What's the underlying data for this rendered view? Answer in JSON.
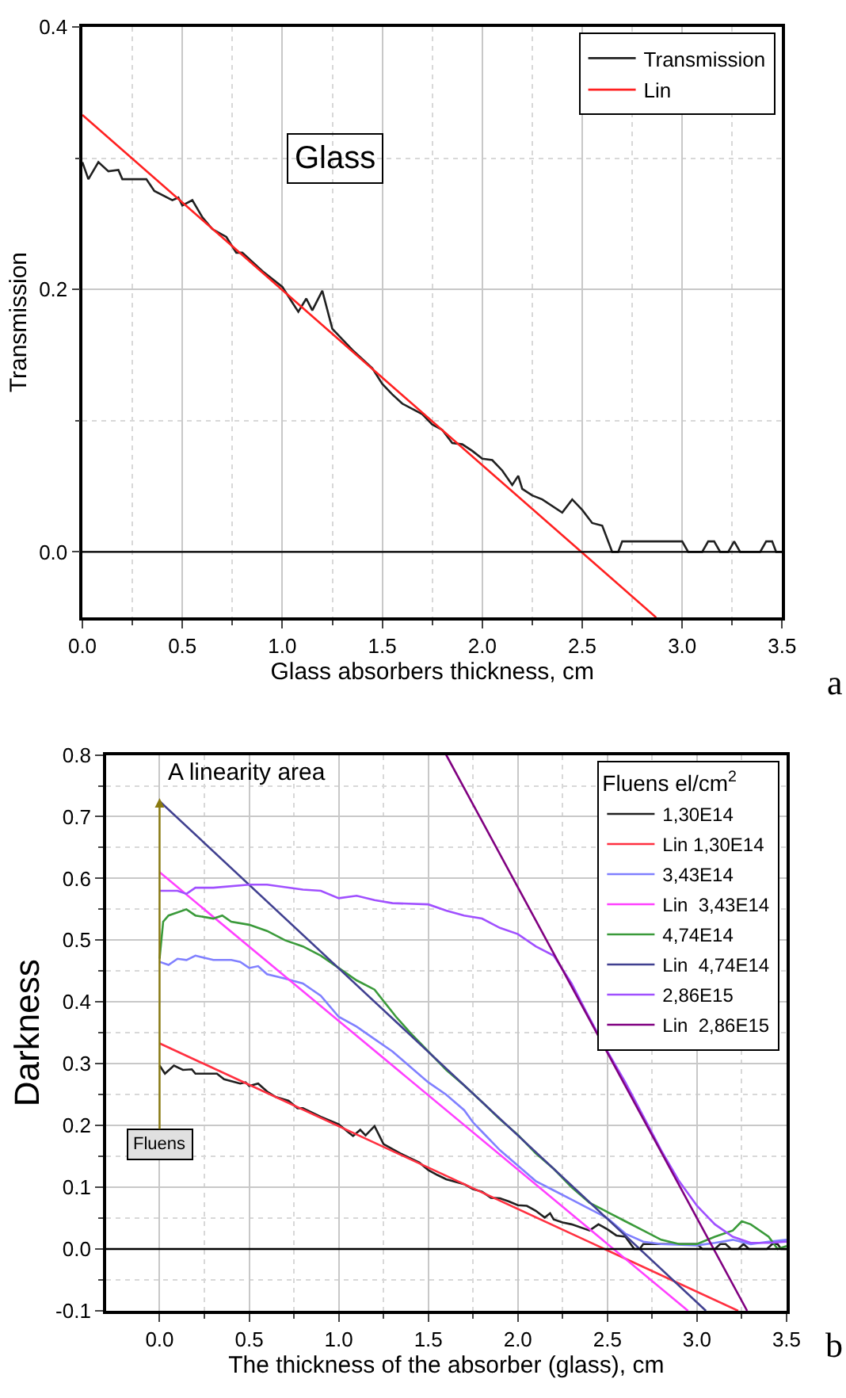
{
  "chart_data": [
    {
      "type": "line",
      "xlabel": "Glass absorbers thickness, cm",
      "ylabel": "Transmission",
      "xlim": [
        0,
        3.5
      ],
      "ylim": [
        -0.05,
        0.4
      ],
      "xticks": [
        {
          "value": 0,
          "label": "0.0"
        },
        0.5,
        {
          "value": 1,
          "label": "1.0"
        },
        1.5,
        {
          "value": 2,
          "label": "2.0"
        },
        2.5,
        {
          "value": 3,
          "label": "3.0"
        },
        3.5
      ],
      "yticks": [
        {
          "value": 0,
          "label": "0.0"
        },
        0.2,
        0.4
      ],
      "grid": true,
      "legend": "top right",
      "ref_lines": [
        {
          "axis": "y",
          "value": 0,
          "color": "#000000"
        }
      ],
      "annotations": [
        "Glass",
        "a"
      ],
      "series": [
        {
          "name": "Transmission",
          "color": "#202020",
          "x": [
            0,
            0.03,
            0.08,
            0.13,
            0.18,
            0.2,
            0.32,
            0.36,
            0.45,
            0.48,
            0.5,
            0.55,
            0.6,
            0.65,
            0.72,
            0.77,
            0.8,
            0.9,
            1.0,
            1.05,
            1.08,
            1.12,
            1.15,
            1.2,
            1.25,
            1.35,
            1.45,
            1.5,
            1.55,
            1.6,
            1.7,
            1.75,
            1.8,
            1.85,
            1.9,
            1.95,
            2.0,
            2.05,
            2.1,
            2.15,
            2.18,
            2.2,
            2.25,
            2.3,
            2.4,
            2.45,
            2.5,
            2.55,
            2.6,
            2.65,
            2.68,
            2.7,
            3.0,
            3.03,
            3.1,
            3.13,
            3.16,
            3.19,
            3.23,
            3.26,
            3.29,
            3.39,
            3.42,
            3.45,
            3.47,
            3.5
          ],
          "values": [
            0.297,
            0.284,
            0.297,
            0.29,
            0.291,
            0.284,
            0.284,
            0.275,
            0.268,
            0.27,
            0.264,
            0.268,
            0.255,
            0.246,
            0.24,
            0.228,
            0.228,
            0.214,
            0.202,
            0.19,
            0.183,
            0.193,
            0.184,
            0.199,
            0.17,
            0.154,
            0.14,
            0.128,
            0.12,
            0.113,
            0.105,
            0.097,
            0.093,
            0.083,
            0.082,
            0.077,
            0.071,
            0.07,
            0.062,
            0.051,
            0.058,
            0.048,
            0.043,
            0.04,
            0.03,
            0.04,
            0.032,
            0.022,
            0.02,
            0.0,
            0.0,
            0.008,
            0.008,
            0.0,
            0.0,
            0.008,
            0.008,
            0.0,
            0.0,
            0.008,
            0.0,
            0.0,
            0.008,
            0.008,
            0.0,
            0.0
          ]
        },
        {
          "name": "Lin",
          "color": "#ff2020",
          "x": [
            0,
            2.87
          ],
          "values": [
            0.333,
            -0.05
          ]
        }
      ]
    },
    {
      "type": "line",
      "xlabel": "The thickness of the absorber (glass), cm",
      "ylabel": "Darkness",
      "legend_title": "Fluens el/cm$^{2}$",
      "xlim": [
        -0.3,
        3.5
      ],
      "ylim": [
        -0.1,
        0.8
      ],
      "xticks": [
        {
          "value": 0,
          "label": "0.0"
        },
        0.5,
        {
          "value": 1,
          "label": "1.0"
        },
        1.5,
        {
          "value": 2,
          "label": "2.0"
        },
        2.5,
        {
          "value": 3,
          "label": "3.0"
        },
        3.5
      ],
      "yticks": [
        -0.1,
        {
          "value": 0,
          "label": "0.0"
        },
        0.1,
        0.2,
        0.3,
        0.4,
        0.5,
        0.6,
        0.7,
        0.8
      ],
      "grid": true,
      "legend": "top right",
      "ref_lines": [
        {
          "axis": "y",
          "value": 0,
          "color": "#000000"
        }
      ],
      "annotations": [
        "A linearity area",
        "Fluens",
        "b"
      ],
      "series": [
        {
          "name": "1,30E14",
          "color": "#202020",
          "x": [
            0,
            0.03,
            0.08,
            0.13,
            0.18,
            0.2,
            0.32,
            0.36,
            0.45,
            0.48,
            0.5,
            0.55,
            0.6,
            0.65,
            0.72,
            0.77,
            0.8,
            0.9,
            1.0,
            1.05,
            1.08,
            1.12,
            1.15,
            1.2,
            1.25,
            1.35,
            1.45,
            1.5,
            1.55,
            1.6,
            1.7,
            1.75,
            1.8,
            1.85,
            1.9,
            1.95,
            2.0,
            2.05,
            2.1,
            2.15,
            2.18,
            2.2,
            2.25,
            2.3,
            2.4,
            2.45,
            2.5,
            2.55,
            2.6,
            2.65,
            2.68,
            2.7,
            3.0,
            3.03,
            3.1,
            3.13,
            3.16,
            3.19,
            3.23,
            3.26,
            3.29,
            3.39,
            3.42,
            3.45,
            3.47,
            3.5
          ],
          "values": [
            0.297,
            0.284,
            0.297,
            0.29,
            0.291,
            0.284,
            0.284,
            0.275,
            0.268,
            0.27,
            0.264,
            0.268,
            0.255,
            0.246,
            0.24,
            0.228,
            0.228,
            0.214,
            0.202,
            0.19,
            0.183,
            0.193,
            0.184,
            0.199,
            0.17,
            0.154,
            0.14,
            0.128,
            0.12,
            0.113,
            0.105,
            0.097,
            0.093,
            0.083,
            0.082,
            0.077,
            0.071,
            0.07,
            0.062,
            0.051,
            0.058,
            0.048,
            0.043,
            0.04,
            0.03,
            0.04,
            0.032,
            0.022,
            0.02,
            0.0,
            0.0,
            0.008,
            0.008,
            0.0,
            0.0,
            0.008,
            0.008,
            0.0,
            0.0,
            0.008,
            0.0,
            0.0,
            0.008,
            0.008,
            0.0,
            0.0
          ]
        },
        {
          "name": "Lin 1,30E14",
          "color": "#ff3040",
          "x": [
            0,
            3.23
          ],
          "values": [
            0.333,
            -0.1
          ]
        },
        {
          "name": "3,43E14",
          "color": "#8080ff",
          "x": [
            0,
            0.05,
            0.1,
            0.15,
            0.2,
            0.3,
            0.4,
            0.45,
            0.5,
            0.55,
            0.6,
            0.7,
            0.8,
            0.9,
            1.0,
            1.1,
            1.2,
            1.3,
            1.4,
            1.5,
            1.6,
            1.7,
            1.75,
            1.8,
            1.9,
            2.0,
            2.1,
            2.2,
            2.3,
            2.4,
            2.5,
            2.6,
            2.7,
            2.8,
            3.0,
            3.1,
            3.2,
            3.3,
            3.4,
            3.5
          ],
          "values": [
            0.465,
            0.46,
            0.47,
            0.468,
            0.475,
            0.468,
            0.468,
            0.465,
            0.455,
            0.458,
            0.445,
            0.438,
            0.43,
            0.41,
            0.376,
            0.36,
            0.34,
            0.32,
            0.295,
            0.27,
            0.25,
            0.225,
            0.205,
            0.19,
            0.16,
            0.135,
            0.11,
            0.095,
            0.08,
            0.065,
            0.05,
            0.025,
            0.012,
            0.008,
            0.006,
            0.01,
            0.015,
            0.008,
            0.012,
            0.015
          ]
        },
        {
          "name": "Lin  3,43E14",
          "color": "#ff40ff",
          "x": [
            0,
            2.95
          ],
          "values": [
            0.61,
            -0.1
          ]
        },
        {
          "name": "4,74E14",
          "color": "#3a9a3a",
          "x": [
            0,
            0.02,
            0.05,
            0.15,
            0.2,
            0.3,
            0.35,
            0.4,
            0.5,
            0.6,
            0.7,
            0.8,
            0.9,
            1.0,
            1.1,
            1.2,
            1.32,
            1.4,
            1.5,
            1.6,
            1.7,
            1.8,
            1.9,
            2.0,
            2.1,
            2.2,
            2.3,
            2.4,
            2.5,
            2.6,
            2.7,
            2.8,
            2.9,
            3.0,
            3.1,
            3.2,
            3.25,
            3.3,
            3.4,
            3.45,
            3.5
          ],
          "values": [
            0.47,
            0.53,
            0.54,
            0.55,
            0.54,
            0.535,
            0.54,
            0.53,
            0.525,
            0.515,
            0.5,
            0.49,
            0.475,
            0.455,
            0.435,
            0.42,
            0.376,
            0.35,
            0.32,
            0.29,
            0.265,
            0.238,
            0.21,
            0.185,
            0.155,
            0.13,
            0.1,
            0.075,
            0.06,
            0.045,
            0.03,
            0.015,
            0.008,
            0.008,
            0.02,
            0.03,
            0.045,
            0.04,
            0.02,
            0.0,
            0.005
          ]
        },
        {
          "name": "Lin  4,74E14",
          "color": "#404090",
          "x": [
            0,
            3.05
          ],
          "values": [
            0.725,
            -0.1
          ]
        },
        {
          "name": "2,86E15",
          "color": "#a050ff",
          "x": [
            0,
            0.1,
            0.15,
            0.2,
            0.3,
            0.5,
            0.6,
            0.8,
            0.9,
            1.0,
            1.1,
            1.2,
            1.3,
            1.5,
            1.6,
            1.7,
            1.8,
            1.9,
            2.0,
            2.1,
            2.2,
            2.3,
            2.38,
            2.5,
            2.6,
            2.7,
            2.8,
            2.9,
            3.0,
            3.1,
            3.2,
            3.3,
            3.4,
            3.5
          ],
          "values": [
            0.58,
            0.58,
            0.575,
            0.585,
            0.585,
            0.59,
            0.59,
            0.582,
            0.58,
            0.568,
            0.572,
            0.565,
            0.56,
            0.558,
            0.548,
            0.54,
            0.535,
            0.52,
            0.51,
            0.49,
            0.475,
            0.43,
            0.385,
            0.32,
            0.27,
            0.215,
            0.16,
            0.11,
            0.07,
            0.04,
            0.02,
            0.01,
            0.01,
            0.012
          ]
        },
        {
          "name": "Lin  2,86E15",
          "color": "#800080",
          "x": [
            1.6,
            3.28
          ],
          "values": [
            0.8,
            -0.1
          ]
        }
      ]
    }
  ]
}
